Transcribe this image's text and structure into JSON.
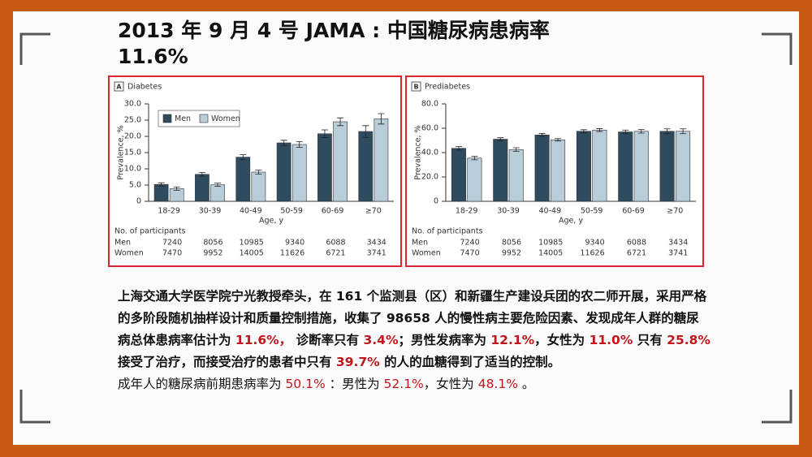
{
  "title": "2013 年 9 月 4 号 JAMA : 中国糖尿病患病率 11.6%",
  "chart_data": [
    {
      "type": "bar",
      "panel": "A",
      "title": "Diabetes",
      "ylabel": "Prevalence, %",
      "xlabel": "Age, y",
      "categories": [
        "18-29",
        "30-39",
        "40-49",
        "50-59",
        "60-69",
        "≥70"
      ],
      "series": [
        {
          "name": "Men",
          "color": "#2f4b5f",
          "values": [
            5.2,
            8.3,
            13.6,
            18.0,
            20.8,
            21.5
          ],
          "errors": [
            0.5,
            0.6,
            0.8,
            0.8,
            1.2,
            1.8
          ]
        },
        {
          "name": "Women",
          "color": "#b9cdd9",
          "values": [
            3.9,
            5.1,
            9.0,
            17.5,
            24.5,
            25.4
          ],
          "errors": [
            0.5,
            0.5,
            0.6,
            0.9,
            1.2,
            1.6
          ]
        }
      ],
      "ylim": [
        0,
        30
      ],
      "yticks": [
        0,
        {
          "value": 5,
          "label": "5.0"
        },
        {
          "value": 10,
          "label": "10.0"
        },
        {
          "value": 15,
          "label": "15.0"
        },
        {
          "value": 20,
          "label": "20.0"
        },
        {
          "value": 25,
          "label": "25.0"
        },
        {
          "value": 30,
          "label": "30.0"
        }
      ],
      "legend": "upper left",
      "participants": {
        "title": "No. of participants",
        "rows": [
          {
            "name": "Men",
            "values": [
              7240,
              8056,
              10985,
              9340,
              6088,
              3434
            ]
          },
          {
            "name": "Women",
            "values": [
              7470,
              9952,
              14005,
              11626,
              6721,
              3741
            ]
          }
        ]
      }
    },
    {
      "type": "bar",
      "panel": "B",
      "title": "Prediabetes",
      "ylabel": "Prevalence, %",
      "xlabel": "Age, y",
      "categories": [
        "18-29",
        "30-39",
        "40-49",
        "50-59",
        "60-69",
        "≥70"
      ],
      "series": [
        {
          "color": "#2f4b5f",
          "values": [
            43.5,
            51.0,
            54.5,
            57.5,
            57.0,
            57.5
          ],
          "errors": [
            1.5,
            1.2,
            1.2,
            1.3,
            1.5,
            2.0
          ]
        },
        {
          "color": "#b9cdd9",
          "values": [
            35.5,
            42.5,
            50.5,
            58.5,
            57.5,
            57.5
          ],
          "errors": [
            1.4,
            1.5,
            1.0,
            1.2,
            1.5,
            2.0
          ]
        }
      ],
      "ylim": [
        0,
        80
      ],
      "yticks": [
        0,
        {
          "value": 20,
          "label": "20.0"
        },
        {
          "value": 40,
          "label": "40.0"
        },
        {
          "value": 60,
          "label": "60.0"
        },
        {
          "value": 80,
          "label": "80.0"
        }
      ],
      "participants": {
        "title": "No. of participants",
        "rows": [
          {
            "name": "Men",
            "values": [
              7240,
              8056,
              10985,
              9340,
              6088,
              3434
            ]
          },
          {
            "name": "Women",
            "values": [
              7470,
              9952,
              14005,
              11626,
              6721,
              3741
            ]
          }
        ]
      }
    }
  ],
  "paragraphs": [
    {
      "bold": true,
      "segments": [
        {
          "text": "上海交通大学医学院宁光教授牵头，在 161 个监测县（区）和新疆生产建设兵团的农二师开展，采用严格的多阶段随机抽样设计和质量控制措施，收集了 98658 人的慢性病主要危险因素、发现成年人群的糖尿病总体患病率估计为 "
        },
        {
          "text": "11.6%，",
          "red": true
        },
        {
          "text": " 诊断率只有 "
        },
        {
          "text": "3.4%",
          "red": true
        },
        {
          "text": "；男性发病率为 "
        },
        {
          "text": "12.1%",
          "red": true
        },
        {
          "text": "，女性为 "
        },
        {
          "text": "11.0%",
          "red": true
        },
        {
          "text": " 只有 "
        },
        {
          "text": "25.8%",
          "red": true
        },
        {
          "text": " 接受了治疗，而接受治疗的患者中只有 "
        },
        {
          "text": "39.7%",
          "red": true
        },
        {
          "text": " 的人的血糖得到了适当的控制。"
        }
      ]
    },
    {
      "bold": false,
      "segments": [
        {
          "text": "成年人的糖尿病前期患病率为 "
        },
        {
          "text": "50.1%",
          "red": true
        },
        {
          "text": " ：男性为 "
        },
        {
          "text": "52.1%",
          "red": true
        },
        {
          "text": "，女性为 "
        },
        {
          "text": "48.1%",
          "red": true
        },
        {
          "text": " 。"
        }
      ]
    }
  ]
}
